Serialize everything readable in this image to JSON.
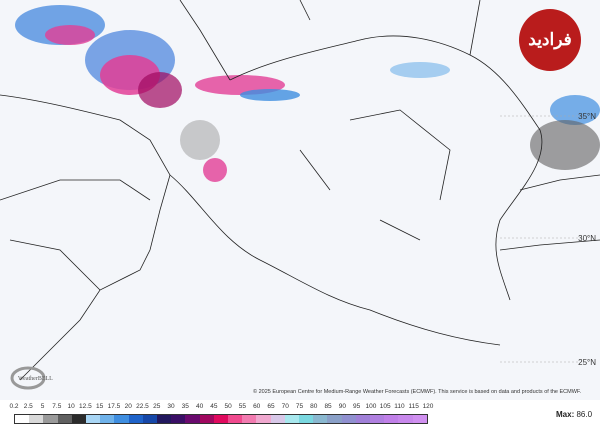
{
  "map": {
    "latitude_labels": [
      "35°N",
      "30°N",
      "25°N"
    ],
    "copyright": "© 2025 European Centre for Medium-Range Weather Forecasts (ECMWF). This service is based on data and products of the ECMWF.",
    "provider_logo": "WeatherBELL",
    "watermark_logo": "فرادید"
  },
  "legend": {
    "ticks": [
      "0.2",
      "2.5",
      "5",
      "7.5",
      "10",
      "12.5",
      "15",
      "17.5",
      "20",
      "22.5",
      "25",
      "30",
      "35",
      "40",
      "45",
      "50",
      "55",
      "60",
      "65",
      "70",
      "75",
      "80",
      "85",
      "90",
      "95",
      "100",
      "105",
      "110",
      "115",
      "120"
    ],
    "colors": [
      "#ffffff",
      "#d9d9d9",
      "#9a9a9a",
      "#606060",
      "#2b2b2b",
      "#a9d6f5",
      "#6fb2ea",
      "#3f8ee0",
      "#1f63c9",
      "#1647a8",
      "#22185e",
      "#3a0f66",
      "#6a0a6e",
      "#a0085f",
      "#e00a5e",
      "#f04a8e",
      "#f27bb0",
      "#f0a8cf",
      "#d8c8e8",
      "#a8e8ee",
      "#7ad8e0",
      "#8ab8d0",
      "#8aa0c8",
      "#9090d0",
      "#a080d8",
      "#b080e0",
      "#c080e8",
      "#c888ec",
      "#d090f0"
    ],
    "max_label": "Max:",
    "max_value": "86.0"
  }
}
